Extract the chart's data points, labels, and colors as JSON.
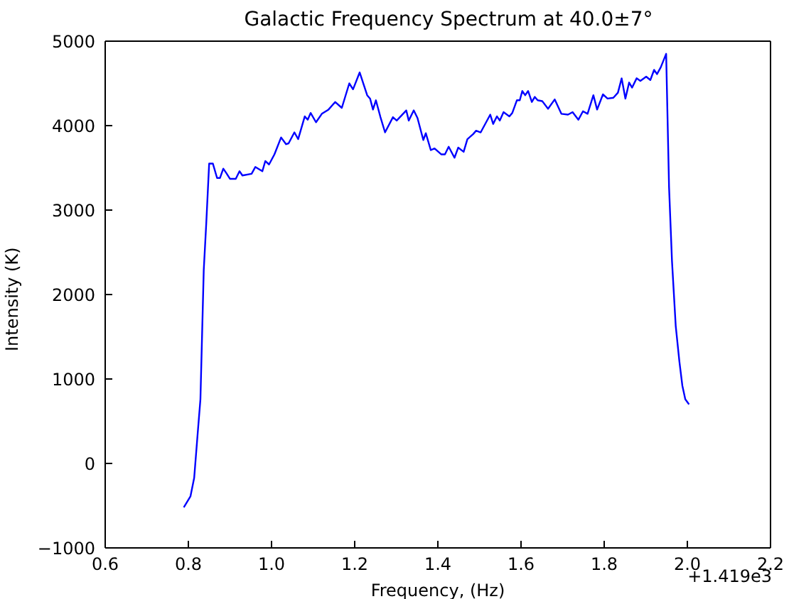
{
  "chart_data": {
    "type": "line",
    "title": "Galactic Frequency Spectrum at 40.0±7°",
    "xlabel": "Frequency, (Hz)",
    "ylabel": "Intensity (K)",
    "annotations": [
      "+1.419e3"
    ],
    "xlim": [
      0.6,
      2.2
    ],
    "xticks": [
      0.6,
      0.8,
      {
        "value": 1,
        "label": "1.0"
      },
      1.2,
      1.4,
      1.6,
      1.8,
      {
        "value": 2,
        "label": "2.0"
      },
      2.2
    ],
    "ylim": [
      -1000,
      5000
    ],
    "yticks": [
      {
        "value": -1000,
        "label": "−1000"
      },
      0,
      1000,
      2000,
      3000,
      4000,
      5000
    ],
    "marker": "none",
    "line_style": "solid",
    "series": [
      {
        "color": "#0000ff",
        "x": [
          0.789,
          0.805,
          0.814,
          0.822,
          0.829,
          0.837,
          0.843,
          0.85,
          0.859,
          0.869,
          0.876,
          0.884,
          0.891,
          0.9,
          0.914,
          0.923,
          0.93,
          0.952,
          0.961,
          0.978,
          0.985,
          0.994,
          1.007,
          1.023,
          1.035,
          1.041,
          1.055,
          1.064,
          1.08,
          1.087,
          1.094,
          1.107,
          1.121,
          1.137,
          1.153,
          1.169,
          1.187,
          1.196,
          1.212,
          1.23,
          1.237,
          1.244,
          1.251,
          1.262,
          1.273,
          1.292,
          1.301,
          1.324,
          1.33,
          1.342,
          1.351,
          1.365,
          1.371,
          1.383,
          1.392,
          1.408,
          1.417,
          1.426,
          1.44,
          1.449,
          1.462,
          1.471,
          1.485,
          1.492,
          1.503,
          1.526,
          1.533,
          1.542,
          1.549,
          1.558,
          1.572,
          1.579,
          1.59,
          1.597,
          1.603,
          1.61,
          1.617,
          1.626,
          1.633,
          1.64,
          1.651,
          1.665,
          1.681,
          1.697,
          1.713,
          1.724,
          1.738,
          1.749,
          1.76,
          1.774,
          1.783,
          1.797,
          1.808,
          1.822,
          1.833,
          1.842,
          1.851,
          1.86,
          1.867,
          1.878,
          1.887,
          1.901,
          1.911,
          1.92,
          1.927,
          1.936,
          1.949,
          1.956,
          1.963,
          1.972,
          1.981,
          1.988,
          1.995,
          2.004
        ],
        "values": [
          -520,
          -390,
          -170,
          330,
          760,
          2290,
          2840,
          3550,
          3550,
          3380,
          3380,
          3490,
          3440,
          3370,
          3370,
          3460,
          3410,
          3430,
          3510,
          3460,
          3580,
          3540,
          3660,
          3860,
          3780,
          3790,
          3920,
          3840,
          4110,
          4070,
          4150,
          4040,
          4140,
          4190,
          4280,
          4210,
          4500,
          4430,
          4630,
          4360,
          4320,
          4190,
          4300,
          4100,
          3920,
          4100,
          4060,
          4180,
          4060,
          4180,
          4090,
          3830,
          3910,
          3710,
          3730,
          3660,
          3660,
          3750,
          3620,
          3740,
          3690,
          3840,
          3900,
          3940,
          3920,
          4130,
          4020,
          4110,
          4060,
          4160,
          4110,
          4150,
          4300,
          4300,
          4410,
          4360,
          4410,
          4280,
          4340,
          4300,
          4290,
          4200,
          4310,
          4140,
          4130,
          4160,
          4070,
          4170,
          4140,
          4360,
          4190,
          4370,
          4320,
          4330,
          4390,
          4560,
          4320,
          4510,
          4450,
          4560,
          4530,
          4580,
          4540,
          4660,
          4610,
          4690,
          4850,
          3270,
          2400,
          1630,
          1200,
          920,
          760,
          700
        ]
      }
    ]
  }
}
